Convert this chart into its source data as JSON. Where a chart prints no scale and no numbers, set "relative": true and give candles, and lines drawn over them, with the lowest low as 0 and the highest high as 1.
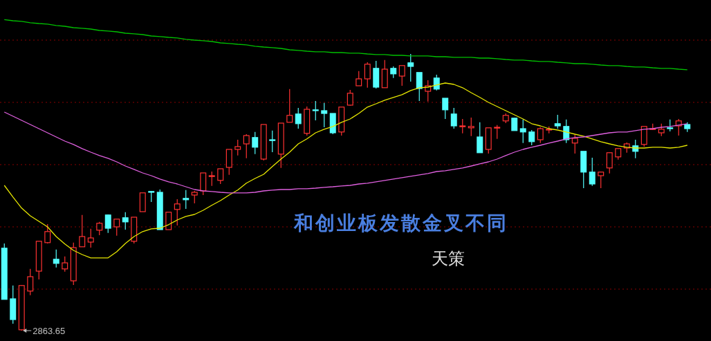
{
  "chart_data": {
    "type": "candlestick",
    "relative": true,
    "ref_lines": [
      {
        "axis": "y",
        "value": 1.05,
        "color": "#8b0000",
        "line_style": "dotted"
      },
      {
        "axis": "y",
        "value": 0.825,
        "color": "#8b0000",
        "line_style": "dotted"
      },
      {
        "axis": "y",
        "value": 0.6,
        "color": "#8b0000",
        "line_style": "dotted"
      },
      {
        "axis": "y",
        "value": 0.375,
        "color": "#8b0000",
        "line_style": "dotted"
      },
      {
        "axis": "y",
        "value": 0.15,
        "color": "#8b0000",
        "line_style": "dotted"
      }
    ],
    "title": "和创业板发散金叉不同",
    "subtitle": "天策",
    "annotations": [
      "2863.65"
    ],
    "categories": [
      null,
      null,
      null,
      null,
      null,
      null,
      null,
      null,
      null,
      null,
      null,
      null,
      null,
      null,
      null,
      null,
      null,
      null,
      null,
      null,
      null,
      null,
      null,
      null,
      null,
      null,
      null,
      null,
      null,
      null,
      null,
      null,
      null,
      null,
      null,
      null,
      null,
      null,
      null,
      null,
      null,
      null,
      null,
      null,
      null,
      null,
      null,
      null,
      null,
      null,
      null,
      null,
      null,
      null,
      null,
      null,
      null,
      null,
      null,
      null,
      null,
      null,
      null,
      null,
      null,
      null,
      null,
      null,
      null,
      null,
      null,
      null,
      null,
      null,
      null,
      null,
      null,
      null,
      null,
      null
    ],
    "ohlc": [
      [
        0.298,
        0.315,
        0.113,
        0.113
      ],
      [
        0.115,
        0.163,
        0.025,
        0.04
      ],
      [
        0.003,
        0.165,
        0,
        0.163
      ],
      [
        0.143,
        0.223,
        0.128,
        0.195
      ],
      [
        0.215,
        0.323,
        0.185,
        0.323
      ],
      [
        0.318,
        0.385,
        0.315,
        0.358
      ],
      [
        0.258,
        0.293,
        0.228,
        0.243
      ],
      [
        0.223,
        0.268,
        0.213,
        0.245
      ],
      [
        0.18,
        0.318,
        0.165,
        0.3
      ],
      [
        0.303,
        0.418,
        0.303,
        0.34
      ],
      [
        0.32,
        0.368,
        0.3,
        0.335
      ],
      [
        0.363,
        0.393,
        0.345,
        0.388
      ],
      [
        0.418,
        0.42,
        0.353,
        0.37
      ],
      [
        0.375,
        0.403,
        0.343,
        0.403
      ],
      [
        0.408,
        0.428,
        0.365,
        0.393
      ],
      [
        0.323,
        0.41,
        0.315,
        0.41
      ],
      [
        0.43,
        0.498,
        0.43,
        0.498
      ],
      [
        0.503,
        0.505,
        0.465,
        0.5
      ],
      [
        0.5,
        0.51,
        0.365,
        0.365
      ],
      [
        0.365,
        0.428,
        0.365,
        0.428
      ],
      [
        0.438,
        0.475,
        0.38,
        0.458
      ],
      [
        0.478,
        0.508,
        0.44,
        0.473
      ],
      [
        0.49,
        0.505,
        0.46,
        0.5
      ],
      [
        0.505,
        0.57,
        0.49,
        0.57
      ],
      [
        0.558,
        0.575,
        0.523,
        0.56
      ],
      [
        0.543,
        0.585,
        0.53,
        0.585
      ],
      [
        0.59,
        0.655,
        0.563,
        0.655
      ],
      [
        0.655,
        0.69,
        0.633,
        0.665
      ],
      [
        0.675,
        0.71,
        0.623,
        0.705
      ],
      [
        0.698,
        0.718,
        0.638,
        0.663
      ],
      [
        0.62,
        0.745,
        0.615,
        0.745
      ],
      [
        0.69,
        0.723,
        0.645,
        0.688
      ],
      [
        0.638,
        0.75,
        0.588,
        0.75
      ],
      [
        0.753,
        0.873,
        0.753,
        0.778
      ],
      [
        0.783,
        0.805,
        0.73,
        0.748
      ],
      [
        0.713,
        0.81,
        0.705,
        0.8
      ],
      [
        0.798,
        0.83,
        0.76,
        0.795
      ],
      [
        0.795,
        0.823,
        0.735,
        0.785
      ],
      [
        0.785,
        0.785,
        0.71,
        0.715
      ],
      [
        0.718,
        0.808,
        0.705,
        0.808
      ],
      [
        0.815,
        0.87,
        0.813,
        0.858
      ],
      [
        0.885,
        0.938,
        0.885,
        0.91
      ],
      [
        0.91,
        0.97,
        0.878,
        0.963
      ],
      [
        0.948,
        0.975,
        0.875,
        0.88
      ],
      [
        0.878,
        0.978,
        0.878,
        0.945
      ],
      [
        0.948,
        0.955,
        0.913,
        0.928
      ],
      [
        0.92,
        0.958,
        0.885,
        0.958
      ],
      [
        0.968,
        1,
        0.9,
        0.955
      ],
      [
        0.933,
        0.933,
        0.83,
        0.875
      ],
      [
        0.865,
        0.905,
        0.828,
        0.885
      ],
      [
        0.913,
        0.925,
        0.868,
        0.873
      ],
      [
        0.84,
        0.84,
        0.765,
        0.798
      ],
      [
        0.783,
        0.805,
        0.73,
        0.74
      ],
      [
        0.738,
        0.765,
        0.713,
        0.74
      ],
      [
        0.733,
        0.77,
        0.703,
        0.738
      ],
      [
        0.7,
        0.753,
        0.643,
        0.643
      ],
      [
        0.655,
        0.733,
        0.64,
        0.733
      ],
      [
        0.733,
        0.743,
        0.693,
        0.735
      ],
      [
        0.758,
        0.785,
        0.75,
        0.778
      ],
      [
        0.768,
        0.77,
        0.723,
        0.723
      ],
      [
        0.73,
        0.763,
        0.678,
        0.718
      ],
      [
        0.718,
        0.725,
        0.67,
        0.683
      ],
      [
        0.69,
        0.735,
        0.678,
        0.73
      ],
      [
        0.725,
        0.738,
        0.713,
        0.728
      ],
      [
        0.748,
        0.78,
        0.73,
        0.74
      ],
      [
        0.738,
        0.763,
        0.678,
        0.69
      ],
      [
        0.678,
        0.708,
        0.64,
        0.695
      ],
      [
        0.648,
        0.648,
        0.515,
        0.573
      ],
      [
        0.573,
        0.625,
        0.523,
        0.53
      ],
      [
        0.56,
        0.575,
        0.515,
        0.573
      ],
      [
        0.588,
        0.645,
        0.568,
        0.643
      ],
      [
        0.628,
        0.658,
        0.618,
        0.658
      ],
      [
        0.66,
        0.68,
        0.643,
        0.675
      ],
      [
        0.668,
        0.69,
        0.623,
        0.648
      ],
      [
        0.673,
        0.738,
        0.665,
        0.738
      ],
      [
        0.728,
        0.748,
        0.725,
        0.73
      ],
      [
        0.715,
        0.748,
        0.703,
        0.728
      ],
      [
        0.733,
        0.763,
        0.72,
        0.73
      ],
      [
        0.74,
        0.765,
        0.705,
        0.758
      ],
      [
        0.745,
        0.753,
        0.718,
        0.73
      ]
    ],
    "series": [
      {
        "type": "line",
        "color": "#e6e600",
        "values": [
          0.525,
          0.483,
          0.443,
          0.415,
          0.395,
          0.375,
          0.34,
          0.313,
          0.29,
          0.275,
          0.263,
          0.263,
          0.263,
          0.285,
          0.315,
          0.34,
          0.358,
          0.368,
          0.37,
          0.383,
          0.4,
          0.413,
          0.42,
          0.435,
          0.453,
          0.47,
          0.49,
          0.508,
          0.533,
          0.55,
          0.565,
          0.593,
          0.62,
          0.645,
          0.675,
          0.693,
          0.715,
          0.728,
          0.738,
          0.753,
          0.765,
          0.785,
          0.808,
          0.82,
          0.833,
          0.843,
          0.853,
          0.868,
          0.878,
          0.88,
          0.888,
          0.895,
          0.89,
          0.878,
          0.86,
          0.843,
          0.825,
          0.81,
          0.795,
          0.78,
          0.765,
          0.748,
          0.74,
          0.73,
          0.725,
          0.718,
          0.71,
          0.703,
          0.693,
          0.683,
          0.675,
          0.668,
          0.663,
          0.66,
          0.66,
          0.663,
          0.663,
          0.66,
          0.663,
          0.67
        ]
      },
      {
        "type": "line",
        "color": "#e060e0",
        "values": [
          0.79,
          0.775,
          0.76,
          0.745,
          0.73,
          0.715,
          0.7,
          0.685,
          0.673,
          0.658,
          0.645,
          0.633,
          0.623,
          0.61,
          0.595,
          0.583,
          0.57,
          0.56,
          0.548,
          0.538,
          0.53,
          0.52,
          0.51,
          0.505,
          0.503,
          0.5,
          0.498,
          0.498,
          0.498,
          0.5,
          0.505,
          0.508,
          0.51,
          0.51,
          0.513,
          0.513,
          0.515,
          0.518,
          0.52,
          0.523,
          0.525,
          0.53,
          0.533,
          0.538,
          0.543,
          0.548,
          0.553,
          0.558,
          0.563,
          0.568,
          0.575,
          0.578,
          0.583,
          0.588,
          0.595,
          0.603,
          0.61,
          0.62,
          0.633,
          0.645,
          0.655,
          0.663,
          0.67,
          0.678,
          0.685,
          0.693,
          0.698,
          0.7,
          0.705,
          0.71,
          0.715,
          0.718,
          0.718,
          0.723,
          0.728,
          0.73,
          0.735,
          0.738,
          0.743,
          0.748
        ]
      },
      {
        "type": "line",
        "color": "#00c000",
        "values": [
          1.124,
          1.12,
          1.118,
          1.113,
          1.11,
          1.108,
          1.103,
          1.1,
          1.095,
          1.093,
          1.09,
          1.085,
          1.083,
          1.08,
          1.075,
          1.073,
          1.07,
          1.065,
          1.063,
          1.06,
          1.058,
          1.053,
          1.05,
          1.048,
          1.045,
          1.04,
          1.038,
          1.035,
          1.033,
          1.028,
          1.025,
          1.023,
          1.02,
          1.015,
          1.013,
          1.01,
          1.008,
          1.008,
          1.005,
          1.005,
          1.003,
          1.003,
          1.0,
          0.998,
          0.998,
          0.995,
          0.995,
          0.993,
          0.993,
          0.993,
          0.99,
          0.99,
          0.988,
          0.988,
          0.988,
          0.985,
          0.985,
          0.983,
          0.98,
          0.978,
          0.978,
          0.975,
          0.973,
          0.973,
          0.97,
          0.968,
          0.965,
          0.965,
          0.963,
          0.96,
          0.958,
          0.958,
          0.955,
          0.953,
          0.953,
          0.95,
          0.948,
          0.948,
          0.945,
          0.943
        ]
      }
    ]
  }
}
